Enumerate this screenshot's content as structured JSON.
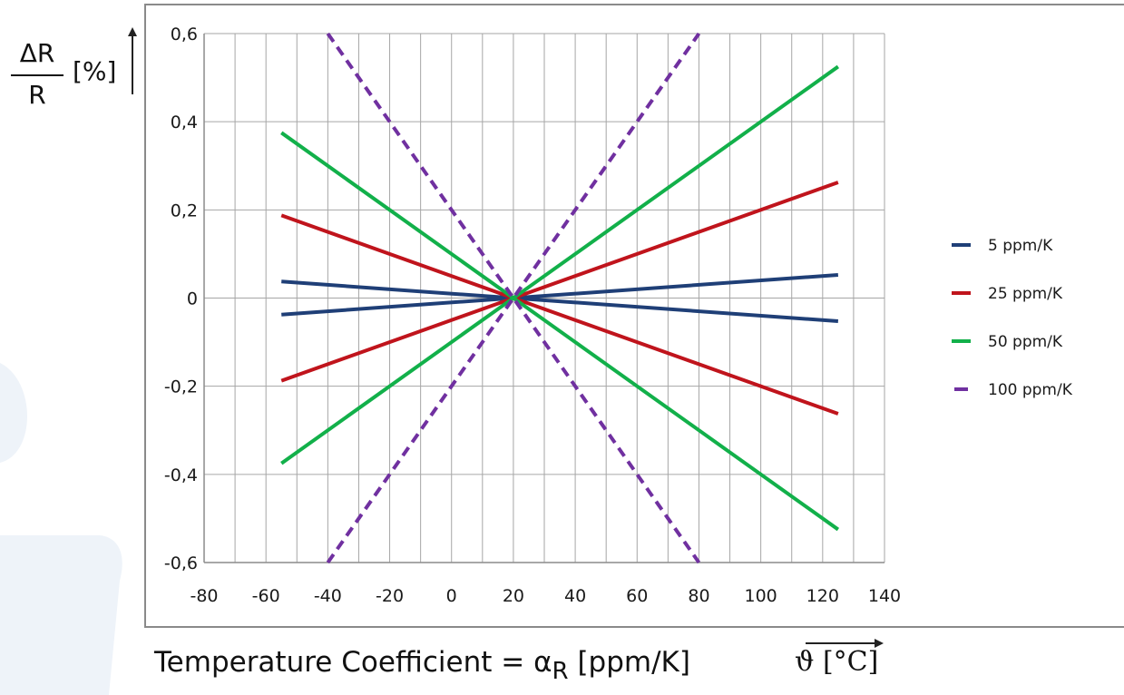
{
  "chart_data": {
    "type": "line",
    "xlim": [
      -80,
      140
    ],
    "ylim": [
      -0.6,
      0.6
    ],
    "x_ticks": [
      "-80",
      "-60",
      "-40",
      "-20",
      "0",
      "20",
      "40",
      "60",
      "80",
      "100",
      "120",
      "140"
    ],
    "y_ticks": [
      "0,6",
      "0,4",
      "0,2",
      "0",
      "-0,2",
      "-0,4",
      "-0,6"
    ],
    "grid": true,
    "legend_position": "right",
    "ylabel_numerator": "ΔR",
    "ylabel_denominator": "R",
    "ylabel_unit": "[%]",
    "xlabel_text": "Temperature Coefficient = α",
    "xlabel_sub": "R",
    "xlabel_unit_text": " [ppm/K]",
    "x_unit_label": "ϑ  [°C]",
    "series": [
      {
        "name": "5 ppm/K",
        "color": "#1f3f77",
        "dashed": false,
        "lines": [
          {
            "x": [
              -55,
              20,
              125
            ],
            "y": [
              0.0375,
              0,
              -0.0525
            ]
          },
          {
            "x": [
              -55,
              20,
              125
            ],
            "y": [
              -0.0375,
              0,
              0.0525
            ]
          }
        ]
      },
      {
        "name": "25 ppm/K",
        "color": "#c0141c",
        "dashed": false,
        "lines": [
          {
            "x": [
              -55,
              20,
              125
            ],
            "y": [
              0.1875,
              0,
              -0.2625
            ]
          },
          {
            "x": [
              -55,
              20,
              125
            ],
            "y": [
              -0.1875,
              0,
              0.2625
            ]
          }
        ]
      },
      {
        "name": "50 ppm/K",
        "color": "#12b04a",
        "dashed": false,
        "lines": [
          {
            "x": [
              -55,
              20,
              125
            ],
            "y": [
              0.375,
              0,
              -0.525
            ]
          },
          {
            "x": [
              -55,
              20,
              125
            ],
            "y": [
              -0.375,
              0,
              0.525
            ]
          }
        ]
      },
      {
        "name": "100 ppm/K",
        "color": "#7030a0",
        "dashed": true,
        "lines": [
          {
            "x": [
              -40,
              20,
              80
            ],
            "y": [
              0.6,
              0,
              -0.6
            ]
          },
          {
            "x": [
              -40,
              20,
              80
            ],
            "y": [
              -0.6,
              0,
              0.6
            ]
          }
        ]
      }
    ]
  }
}
